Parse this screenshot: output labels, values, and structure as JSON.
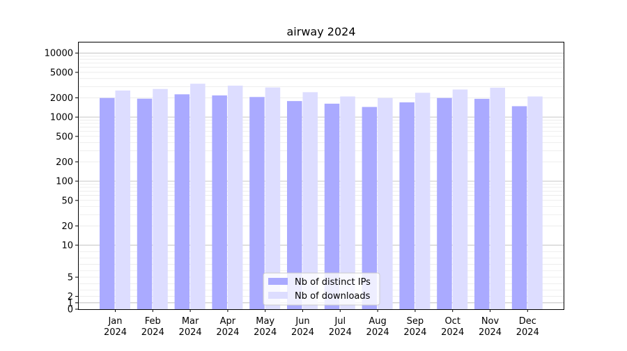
{
  "chart_data": {
    "type": "bar",
    "title": "airway 2024",
    "xlabel": "",
    "ylabel": "",
    "y_scale": "symlog",
    "ylim": [
      0,
      15000
    ],
    "y_ticks": [
      0,
      1,
      2,
      5,
      10,
      20,
      50,
      100,
      200,
      500,
      1000,
      2000,
      5000,
      10000
    ],
    "grid": "horizontal",
    "legend_position": "lower-center",
    "categories": [
      [
        "Jan",
        "2024"
      ],
      [
        "Feb",
        "2024"
      ],
      [
        "Mar",
        "2024"
      ],
      [
        "Apr",
        "2024"
      ],
      [
        "May",
        "2024"
      ],
      [
        "Jun",
        "2024"
      ],
      [
        "Jul",
        "2024"
      ],
      [
        "Aug",
        "2024"
      ],
      [
        "Sep",
        "2024"
      ],
      [
        "Oct",
        "2024"
      ],
      [
        "Nov",
        "2024"
      ],
      [
        "Dec",
        "2024"
      ]
    ],
    "series": [
      {
        "name": "Nb of distinct IPs",
        "color": "#aaaaff",
        "values": [
          1990,
          1940,
          2270,
          2180,
          2060,
          1780,
          1620,
          1440,
          1700,
          1990,
          1930,
          1480
        ]
      },
      {
        "name": "Nb of downloads",
        "color": "#ddddff",
        "values": [
          2600,
          2750,
          3320,
          3100,
          2900,
          2450,
          2100,
          1990,
          2400,
          2700,
          2880,
          2100
        ]
      }
    ]
  }
}
